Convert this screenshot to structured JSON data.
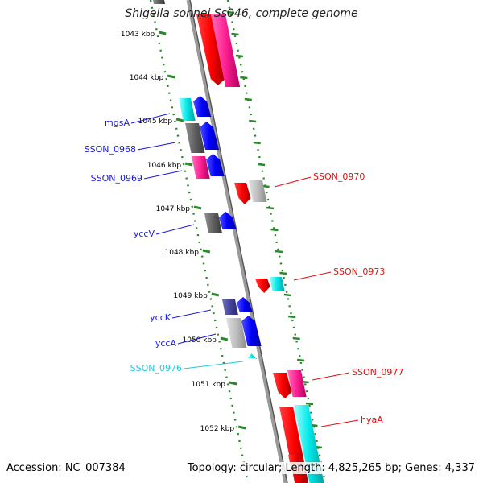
{
  "title": "Shigella sonnei Ss046, complete genome",
  "footer": {
    "accession": "Accession: NC_007384",
    "summary": "Topology: circular; Length: 4,825,265 bp; Genes: 4,337"
  },
  "colors": {
    "backbone": "#8c8c8c",
    "ruler_tick": "#2a8a2a",
    "left_label": "#1a1ae0",
    "right_label": "#e01010",
    "cyan_label": "#22c8e0"
  },
  "ruler": [
    {
      "label": "1043 kbp"
    },
    {
      "label": "1044 kbp"
    },
    {
      "label": "1045 kbp"
    },
    {
      "label": "1046 kbp"
    },
    {
      "label": "1047 kbp"
    },
    {
      "label": "1048 kbp"
    },
    {
      "label": "1049 kbp"
    },
    {
      "label": "1050 kbp"
    },
    {
      "label": "1051 kbp"
    },
    {
      "label": "1052 kbp"
    }
  ],
  "left_genes": [
    {
      "name": "mgsA",
      "color": "#1a1ae0"
    },
    {
      "name": "SSON_0968",
      "color": "#1a1ae0"
    },
    {
      "name": "SSON_0969",
      "color": "#1a1ae0"
    },
    {
      "name": "yccV",
      "color": "#1a1ae0"
    },
    {
      "name": "yccK",
      "color": "#1a1ae0"
    },
    {
      "name": "yccA",
      "color": "#1a1ae0"
    },
    {
      "name": "SSON_0976",
      "color": "#22c8e0"
    }
  ],
  "right_genes": [
    {
      "name": "SSON_0970",
      "color": "#e01010"
    },
    {
      "name": "SSON_0973",
      "color": "#e01010"
    },
    {
      "name": "SSON_0977",
      "color": "#e01010"
    },
    {
      "name": "hyaA",
      "color": "#e01010"
    }
  ]
}
